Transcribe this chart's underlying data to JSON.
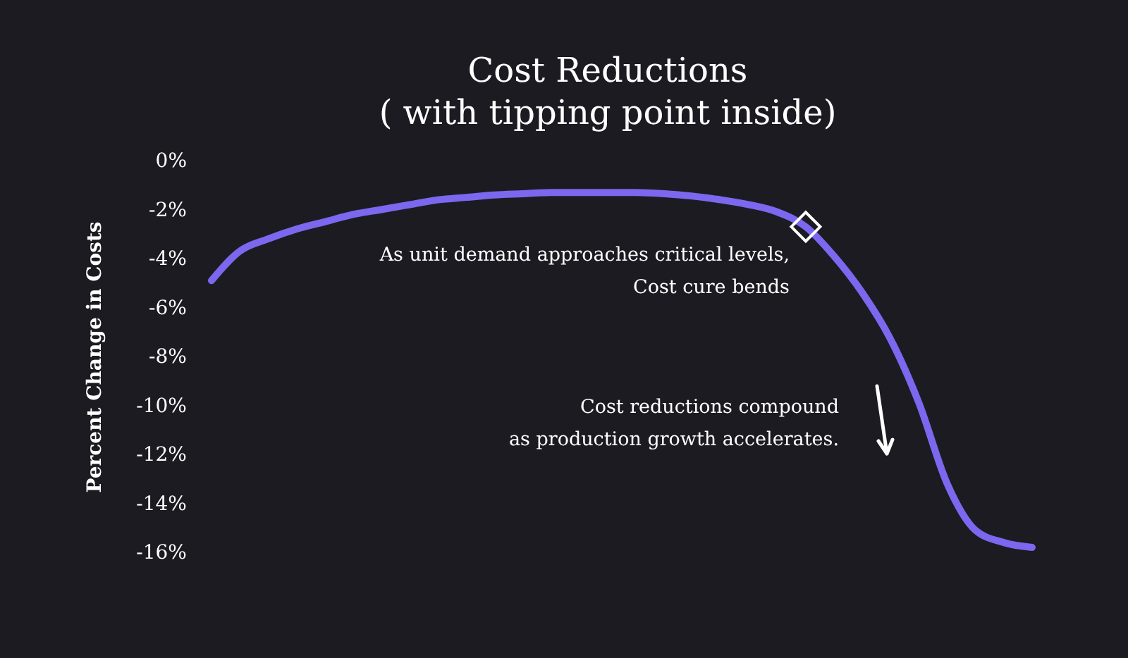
{
  "chart_data": {
    "type": "line",
    "title": "Cost Reductions",
    "subtitle": "( with tipping point inside)",
    "ylabel": "Percent Change in Costs",
    "categories": [
      null,
      null,
      null,
      null,
      null,
      null,
      null,
      null,
      null,
      null,
      null,
      null,
      null,
      null,
      null,
      null,
      null,
      null,
      null,
      null,
      null,
      null,
      null,
      null,
      null,
      null,
      null,
      null,
      null,
      null
    ],
    "series": [
      {
        "color": "#7b68ee",
        "values": [
          -4.9,
          -3.7,
          -3.2,
          -2.8,
          -2.5,
          -2.2,
          -2.0,
          -1.8,
          -1.6,
          -1.5,
          -1.4,
          -1.35,
          -1.3,
          -1.3,
          -1.3,
          -1.3,
          -1.35,
          -1.45,
          -1.6,
          -1.8,
          -2.1,
          -2.7,
          -3.9,
          -5.4,
          -7.3,
          -9.9,
          -13.2,
          -15.1,
          -15.6,
          -15.8
        ]
      },
      {
        "type": "scatter",
        "marker": "diamond",
        "color": "#ffffff",
        "values": [
          null,
          null,
          null,
          null,
          null,
          null,
          null,
          null,
          null,
          null,
          null,
          null,
          null,
          null,
          null,
          null,
          null,
          null,
          null,
          null,
          null,
          -2.7,
          null,
          null,
          null,
          null,
          null,
          null,
          null,
          null
        ]
      }
    ],
    "ylim": [
      -16,
      0
    ],
    "yticks": [
      {
        "value": 0,
        "label": "0%"
      },
      {
        "value": -2,
        "label": "-2%"
      },
      {
        "value": -4,
        "label": "-4%"
      },
      {
        "value": -6,
        "label": "-6%"
      },
      {
        "value": -8,
        "label": "-8%"
      },
      {
        "value": -10,
        "label": "-10%"
      },
      {
        "value": -12,
        "label": "-12%"
      },
      {
        "value": -14,
        "label": "-14%"
      },
      {
        "value": -16,
        "label": "-16%"
      }
    ],
    "grid": false,
    "annotations": [
      "As unit demand approaches critical levels,\nCost cure bends",
      "Cost reductions compound\nas production growth accelerates."
    ]
  }
}
